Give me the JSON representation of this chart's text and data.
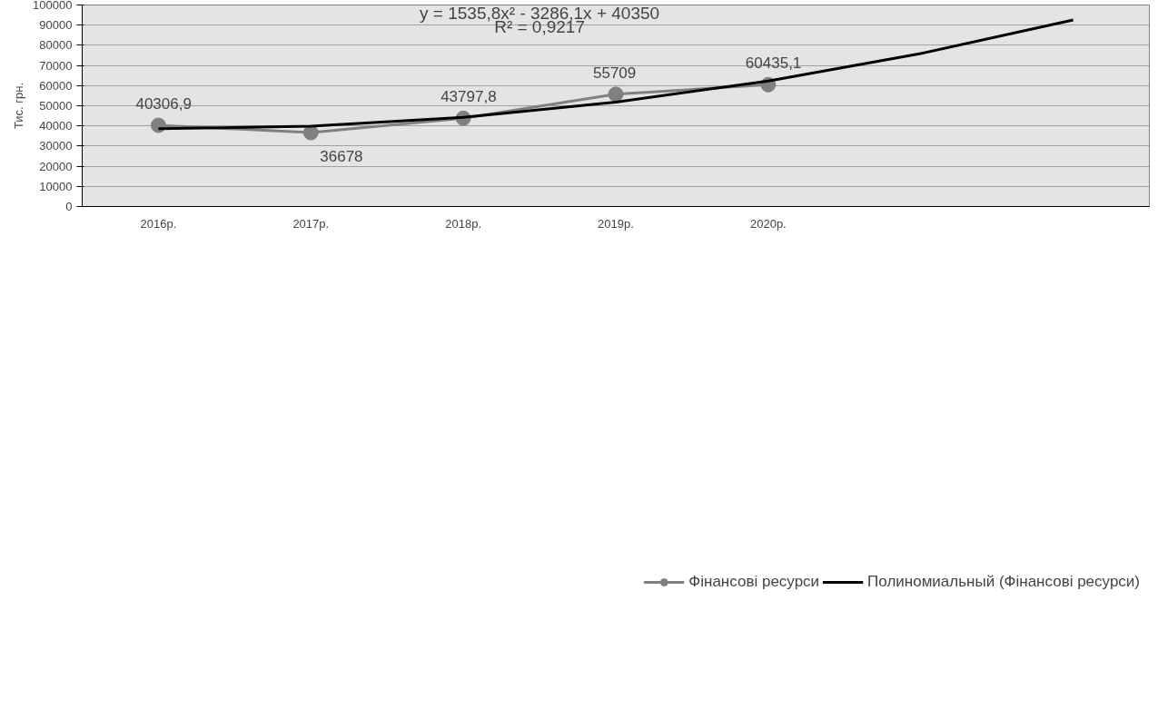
{
  "chart_data": {
    "type": "line",
    "ylabel": "Тис. грн.",
    "categories": [
      "2016р.",
      "2017р.",
      "2018р.",
      "2019р.",
      "2020р.",
      null,
      null
    ],
    "series": [
      {
        "name": "Фінансові ресурси",
        "color": "#808080",
        "marker": "circle",
        "values": [
          40306.9,
          36678,
          43797.8,
          55709,
          60435.1,
          null,
          null
        ],
        "value_labels": [
          "40306,9",
          "36678",
          "43797,8",
          "55709",
          "60435,1",
          null,
          null
        ]
      },
      {
        "name": "Полиномиальный (Фінансові ресурси)",
        "color": "#000000",
        "marker": "none",
        "values": [
          38600,
          39900,
          44300,
          51800,
          62300,
          75900,
          92600
        ]
      }
    ],
    "ylim": [
      0,
      100000
    ],
    "yticks": [
      0,
      10000,
      20000,
      30000,
      40000,
      50000,
      60000,
      70000,
      80000,
      90000,
      100000
    ],
    "grid": "y",
    "legend": "bottom",
    "annotations": [
      "y = 1535,8x² - 3286,1x + 40350",
      "R² = 0,9217"
    ]
  }
}
